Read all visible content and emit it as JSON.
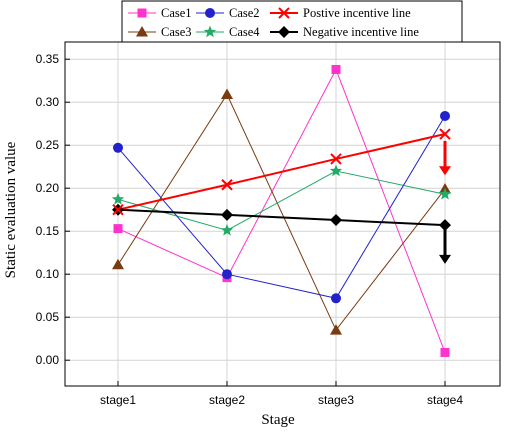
{
  "chart_data": {
    "type": "line",
    "categories": [
      "stage1",
      "stage2",
      "stage3",
      "stage4"
    ],
    "xlabel": "Stage",
    "ylabel": "Static evaluation value",
    "ylim": [
      -0.03,
      0.37
    ],
    "yticks": [
      "0.00",
      "0.05",
      "0.10",
      "0.15",
      "0.20",
      "0.25",
      "0.30",
      "0.35"
    ],
    "ytick_values": [
      0.0,
      0.05,
      0.1,
      0.15,
      0.2,
      0.25,
      0.3,
      0.35
    ],
    "grid": true,
    "legend": "top",
    "series": [
      {
        "name": "Case1",
        "values": [
          0.153,
          0.096,
          0.338,
          0.009
        ],
        "color": "#ff33cc",
        "marker": "square"
      },
      {
        "name": "Case2",
        "values": [
          0.247,
          0.1,
          0.072,
          0.284
        ],
        "color": "#2222cc",
        "marker": "circle"
      },
      {
        "name": "Postive incentive line",
        "values": [
          0.175,
          0.204,
          0.234,
          0.263
        ],
        "color": "#ff0000",
        "marker": "x"
      },
      {
        "name": "Case3",
        "values": [
          0.111,
          0.309,
          0.035,
          0.199
        ],
        "color": "#7a3b10",
        "marker": "triangle"
      },
      {
        "name": "Case4",
        "values": [
          0.187,
          0.151,
          0.22,
          0.193
        ],
        "color": "#22aa66",
        "marker": "star"
      },
      {
        "name": "Negative incentive line",
        "values": [
          0.175,
          0.169,
          0.163,
          0.157
        ],
        "color": "#000000",
        "marker": "diamond"
      }
    ],
    "annotations": [
      {
        "type": "arrow-down",
        "x": "stage4",
        "from": 0.255,
        "to": 0.215,
        "color": "#ff0000"
      },
      {
        "type": "arrow-down",
        "x": "stage4",
        "from": 0.153,
        "to": 0.112,
        "color": "#000000"
      }
    ]
  }
}
